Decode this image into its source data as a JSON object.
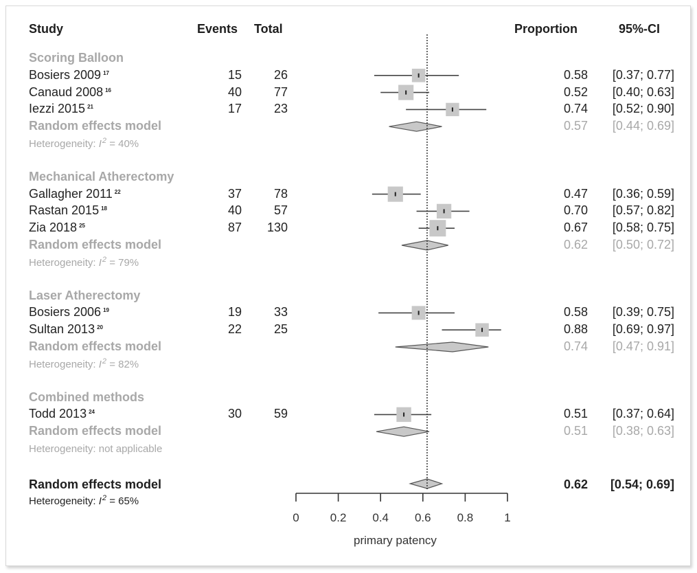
{
  "headers": {
    "study": "Study",
    "events": "Events",
    "total": "Total",
    "proportion": "Proportion",
    "ci": "95%-CI"
  },
  "groups": [
    {
      "name": "Scoring Balloon",
      "studies": [
        {
          "name": "Bosiers 2009",
          "ref": "17",
          "events": "15",
          "total": "26",
          "prop": "0.58",
          "ci": "[0.37; 0.77]"
        },
        {
          "name": "Canaud 2008",
          "ref": "16",
          "events": "40",
          "total": "77",
          "prop": "0.52",
          "ci": "[0.40; 0.63]"
        },
        {
          "name": "Iezzi 2015",
          "ref": "21",
          "events": "17",
          "total": "23",
          "prop": "0.74",
          "ci": "[0.52; 0.90]"
        }
      ],
      "model_label": "Random effects model",
      "model_prop": "0.57",
      "model_ci": "[0.44; 0.69]",
      "het_prefix": "Heterogeneity: ",
      "het_i": "I",
      "het_sup": "2",
      "het_value": " = 40%"
    },
    {
      "name": "Mechanical Atherectomy",
      "studies": [
        {
          "name": "Gallagher 2011",
          "ref": "22",
          "events": "37",
          "total": "78",
          "prop": "0.47",
          "ci": "[0.36; 0.59]"
        },
        {
          "name": "Rastan 2015",
          "ref": "18",
          "events": "40",
          "total": "57",
          "prop": "0.70",
          "ci": "[0.57; 0.82]"
        },
        {
          "name": "Zia 2018",
          "ref": "25",
          "events": "87",
          "total": "130",
          "prop": "0.67",
          "ci": "[0.58; 0.75]"
        }
      ],
      "model_label": "Random effects model",
      "model_prop": "0.62",
      "model_ci": "[0.50; 0.72]",
      "het_prefix": "Heterogeneity: ",
      "het_i": "I",
      "het_sup": "2",
      "het_value": " = 79%"
    },
    {
      "name": "Laser Atherectomy",
      "studies": [
        {
          "name": "Bosiers 2006",
          "ref": "19",
          "events": "19",
          "total": "33",
          "prop": "0.58",
          "ci": "[0.39; 0.75]"
        },
        {
          "name": "Sultan 2013",
          "ref": "20",
          "events": "22",
          "total": "25",
          "prop": "0.88",
          "ci": "[0.69; 0.97]"
        }
      ],
      "model_label": "Random effects model",
      "model_prop": "0.74",
      "model_ci": "[0.47; 0.91]",
      "het_prefix": "Heterogeneity: ",
      "het_i": "I",
      "het_sup": "2",
      "het_value": " = 82%"
    },
    {
      "name": "Combined methods",
      "studies": [
        {
          "name": "Todd 2013",
          "ref": "24",
          "events": "30",
          "total": "59",
          "prop": "0.51",
          "ci": "[0.37; 0.64]"
        }
      ],
      "model_label": "Random effects model",
      "model_prop": "0.51",
      "model_ci": "[0.38; 0.63]",
      "het_text": "Heterogeneity: not applicable"
    }
  ],
  "overall": {
    "label": "Random effects model",
    "prop": "0.62",
    "ci": "[0.54; 0.69]",
    "het_prefix": "Heterogeneity: ",
    "het_i": "I",
    "het_sup": "2",
    "het_value": " = 65%"
  },
  "chart_data": {
    "type": "forest",
    "xlabel": "primary patency",
    "xlim": [
      0,
      1
    ],
    "xticks": [
      0,
      0.2,
      0.4,
      0.6,
      0.8,
      1
    ],
    "xtick_labels": [
      "0",
      "0.2",
      "0.4",
      "0.6",
      "0.8",
      "1"
    ],
    "reference_line": 0.62,
    "studies": [
      {
        "group": "Scoring Balloon",
        "name": "Bosiers 2009",
        "est": 0.58,
        "lo": 0.37,
        "hi": 0.77,
        "weight": 26
      },
      {
        "group": "Scoring Balloon",
        "name": "Canaud 2008",
        "est": 0.52,
        "lo": 0.4,
        "hi": 0.63,
        "weight": 77
      },
      {
        "group": "Scoring Balloon",
        "name": "Iezzi 2015",
        "est": 0.74,
        "lo": 0.52,
        "hi": 0.9,
        "weight": 23
      },
      {
        "group": "Mechanical Atherectomy",
        "name": "Gallagher 2011",
        "est": 0.47,
        "lo": 0.36,
        "hi": 0.59,
        "weight": 78
      },
      {
        "group": "Mechanical Atherectomy",
        "name": "Rastan 2015",
        "est": 0.7,
        "lo": 0.57,
        "hi": 0.82,
        "weight": 57
      },
      {
        "group": "Mechanical Atherectomy",
        "name": "Zia 2018",
        "est": 0.67,
        "lo": 0.58,
        "hi": 0.75,
        "weight": 130
      },
      {
        "group": "Laser Atherectomy",
        "name": "Bosiers 2006",
        "est": 0.58,
        "lo": 0.39,
        "hi": 0.75,
        "weight": 33
      },
      {
        "group": "Laser Atherectomy",
        "name": "Sultan 2013",
        "est": 0.88,
        "lo": 0.69,
        "hi": 0.97,
        "weight": 25
      },
      {
        "group": "Combined methods",
        "name": "Todd 2013",
        "est": 0.51,
        "lo": 0.37,
        "hi": 0.64,
        "weight": 59
      }
    ],
    "subgroup_models": [
      {
        "group": "Scoring Balloon",
        "est": 0.57,
        "lo": 0.44,
        "hi": 0.69
      },
      {
        "group": "Mechanical Atherectomy",
        "est": 0.62,
        "lo": 0.5,
        "hi": 0.72
      },
      {
        "group": "Laser Atherectomy",
        "est": 0.74,
        "lo": 0.47,
        "hi": 0.91
      },
      {
        "group": "Combined methods",
        "est": 0.51,
        "lo": 0.38,
        "hi": 0.63
      }
    ],
    "overall_model": {
      "est": 0.62,
      "lo": 0.54,
      "hi": 0.69
    },
    "colors": {
      "marker": "#c8c8c8",
      "line": "#444444",
      "diamond": "#c8c8c8",
      "subgroup_text": "#a8a8a8"
    }
  }
}
